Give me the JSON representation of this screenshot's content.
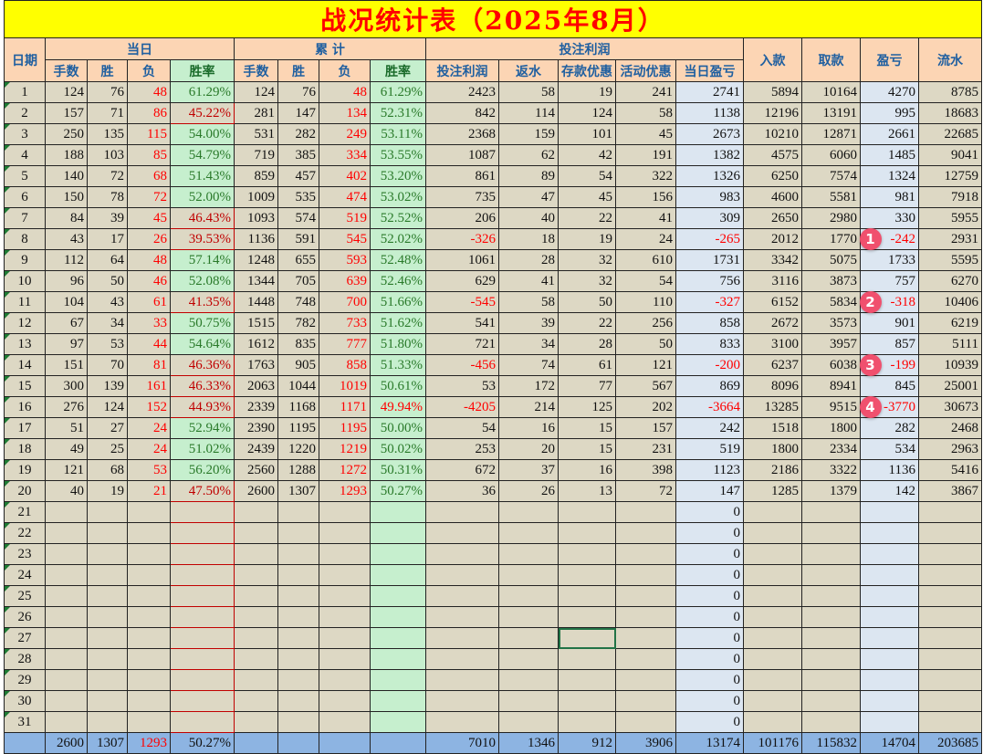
{
  "title": "战况统计表（2025年8月）",
  "headers": {
    "date": "日期",
    "daily": "当日",
    "cumulative": "累 计",
    "betting_profit": "投注利润",
    "deposit": "入款",
    "withdraw": "取款",
    "pnl": "盈亏",
    "turnover": "流水",
    "sub": [
      "手数",
      "胜",
      "负",
      "胜率",
      "手数",
      "胜",
      "负",
      "胜率",
      "投注利润",
      "返水",
      "存款优惠",
      "活动优惠",
      "当日盈亏"
    ]
  },
  "colors": {
    "title_bg": "#ffff00",
    "title_text": "#ff0000",
    "header_bg": "#fcd5b4",
    "rate_bg": "#c6efce",
    "negative": "#ff0000",
    "total_bg": "#8db4e2",
    "highlight_col_bg": "#dce6f1"
  },
  "rows": [
    [
      "1",
      "124",
      "76",
      "48",
      "61.29%",
      "124",
      "76",
      "48",
      "61.29%",
      "2423",
      "58",
      "19",
      "241",
      "2741",
      "5894",
      "10164",
      "4270",
      "8785"
    ],
    [
      "2",
      "157",
      "71",
      "86",
      "45.22%",
      "281",
      "147",
      "134",
      "52.31%",
      "842",
      "114",
      "124",
      "58",
      "1138",
      "12196",
      "13191",
      "995",
      "18683"
    ],
    [
      "3",
      "250",
      "135",
      "115",
      "54.00%",
      "531",
      "282",
      "249",
      "53.11%",
      "2368",
      "159",
      "101",
      "45",
      "2673",
      "10210",
      "12871",
      "2661",
      "22685"
    ],
    [
      "4",
      "188",
      "103",
      "85",
      "54.79%",
      "719",
      "385",
      "334",
      "53.55%",
      "1087",
      "62",
      "42",
      "191",
      "1382",
      "4575",
      "6060",
      "1485",
      "9041"
    ],
    [
      "5",
      "140",
      "72",
      "68",
      "51.43%",
      "859",
      "457",
      "402",
      "53.20%",
      "861",
      "89",
      "54",
      "322",
      "1326",
      "6250",
      "7574",
      "1324",
      "12759"
    ],
    [
      "6",
      "150",
      "78",
      "72",
      "52.00%",
      "1009",
      "535",
      "474",
      "53.02%",
      "735",
      "47",
      "45",
      "156",
      "983",
      "4600",
      "5581",
      "981",
      "7918"
    ],
    [
      "7",
      "84",
      "39",
      "45",
      "46.43%",
      "1093",
      "574",
      "519",
      "52.52%",
      "206",
      "40",
      "22",
      "41",
      "309",
      "2650",
      "2980",
      "330",
      "5955"
    ],
    [
      "8",
      "43",
      "17",
      "26",
      "39.53%",
      "1136",
      "591",
      "545",
      "52.02%",
      "-326",
      "18",
      "19",
      "24",
      "-265",
      "2012",
      "1770",
      "-242",
      "2931"
    ],
    [
      "9",
      "112",
      "64",
      "48",
      "57.14%",
      "1248",
      "655",
      "593",
      "52.48%",
      "1061",
      "28",
      "32",
      "610",
      "1731",
      "3342",
      "5075",
      "1733",
      "5595"
    ],
    [
      "10",
      "96",
      "50",
      "46",
      "52.08%",
      "1344",
      "705",
      "639",
      "52.46%",
      "629",
      "41",
      "32",
      "54",
      "756",
      "3116",
      "3873",
      "757",
      "6270"
    ],
    [
      "11",
      "104",
      "43",
      "61",
      "41.35%",
      "1448",
      "748",
      "700",
      "51.66%",
      "-545",
      "58",
      "50",
      "110",
      "-327",
      "6152",
      "5834",
      "-318",
      "10406"
    ],
    [
      "12",
      "67",
      "34",
      "33",
      "50.75%",
      "1515",
      "782",
      "733",
      "51.62%",
      "541",
      "39",
      "22",
      "256",
      "858",
      "2672",
      "3573",
      "901",
      "6219"
    ],
    [
      "13",
      "97",
      "53",
      "44",
      "54.64%",
      "1612",
      "835",
      "777",
      "51.80%",
      "721",
      "34",
      "28",
      "50",
      "833",
      "3100",
      "3957",
      "857",
      "5111"
    ],
    [
      "14",
      "151",
      "70",
      "81",
      "46.36%",
      "1763",
      "905",
      "858",
      "51.33%",
      "-456",
      "74",
      "61",
      "121",
      "-200",
      "6237",
      "6038",
      "-199",
      "10939"
    ],
    [
      "15",
      "300",
      "139",
      "161",
      "46.33%",
      "2063",
      "1044",
      "1019",
      "50.61%",
      "53",
      "172",
      "77",
      "567",
      "869",
      "8096",
      "8941",
      "845",
      "25001"
    ],
    [
      "16",
      "276",
      "124",
      "152",
      "44.93%",
      "2339",
      "1168",
      "1171",
      "49.94%",
      "-4205",
      "214",
      "125",
      "202",
      "-3664",
      "13285",
      "9515",
      "-3770",
      "30673"
    ],
    [
      "17",
      "51",
      "27",
      "24",
      "52.94%",
      "2390",
      "1195",
      "1195",
      "50.00%",
      "54",
      "16",
      "15",
      "157",
      "242",
      "1518",
      "1800",
      "282",
      "2468"
    ],
    [
      "18",
      "49",
      "25",
      "24",
      "51.02%",
      "2439",
      "1220",
      "1219",
      "50.02%",
      "253",
      "20",
      "15",
      "231",
      "519",
      "1800",
      "2334",
      "534",
      "2963"
    ],
    [
      "19",
      "121",
      "68",
      "53",
      "56.20%",
      "2560",
      "1288",
      "1272",
      "50.31%",
      "672",
      "37",
      "16",
      "398",
      "1123",
      "2186",
      "3322",
      "1136",
      "5416"
    ],
    [
      "20",
      "40",
      "19",
      "21",
      "47.50%",
      "2600",
      "1307",
      "1293",
      "50.27%",
      "36",
      "26",
      "13",
      "72",
      "147",
      "1285",
      "1379",
      "142",
      "3867"
    ],
    [
      "21",
      "",
      "",
      "",
      "",
      "",
      "",
      "",
      "",
      "",
      "",
      "",
      "",
      "0",
      "",
      "",
      "",
      ""
    ],
    [
      "22",
      "",
      "",
      "",
      "",
      "",
      "",
      "",
      "",
      "",
      "",
      "",
      "",
      "0",
      "",
      "",
      "",
      ""
    ],
    [
      "23",
      "",
      "",
      "",
      "",
      "",
      "",
      "",
      "",
      "",
      "",
      "",
      "",
      "0",
      "",
      "",
      "",
      ""
    ],
    [
      "24",
      "",
      "",
      "",
      "",
      "",
      "",
      "",
      "",
      "",
      "",
      "",
      "",
      "0",
      "",
      "",
      "",
      ""
    ],
    [
      "25",
      "",
      "",
      "",
      "",
      "",
      "",
      "",
      "",
      "",
      "",
      "",
      "",
      "0",
      "",
      "",
      "",
      ""
    ],
    [
      "26",
      "",
      "",
      "",
      "",
      "",
      "",
      "",
      "",
      "",
      "",
      "",
      "",
      "0",
      "",
      "",
      "",
      ""
    ],
    [
      "27",
      "",
      "",
      "",
      "",
      "",
      "",
      "",
      "",
      "",
      "",
      "",
      "",
      "0",
      "",
      "",
      "",
      ""
    ],
    [
      "28",
      "",
      "",
      "",
      "",
      "",
      "",
      "",
      "",
      "",
      "",
      "",
      "",
      "0",
      "",
      "",
      "",
      ""
    ],
    [
      "29",
      "",
      "",
      "",
      "",
      "",
      "",
      "",
      "",
      "",
      "",
      "",
      "",
      "0",
      "",
      "",
      "",
      ""
    ],
    [
      "30",
      "",
      "",
      "",
      "",
      "",
      "",
      "",
      "",
      "",
      "",
      "",
      "",
      "0",
      "",
      "",
      "",
      ""
    ],
    [
      "31",
      "",
      "",
      "",
      "",
      "",
      "",
      "",
      "",
      "",
      "",
      "",
      "",
      "0",
      "",
      "",
      "",
      ""
    ]
  ],
  "total": [
    "",
    "2600",
    "1307",
    "1293",
    "50.27%",
    "",
    "",
    "",
    "",
    "7010",
    "1346",
    "912",
    "3906",
    "13174",
    "101176",
    "115832",
    "14704",
    "203685"
  ],
  "annotations": [
    {
      "label": "1",
      "row": 8
    },
    {
      "label": "2",
      "row": 11
    },
    {
      "label": "3",
      "row": 14
    },
    {
      "label": "4",
      "row": 16
    }
  ]
}
